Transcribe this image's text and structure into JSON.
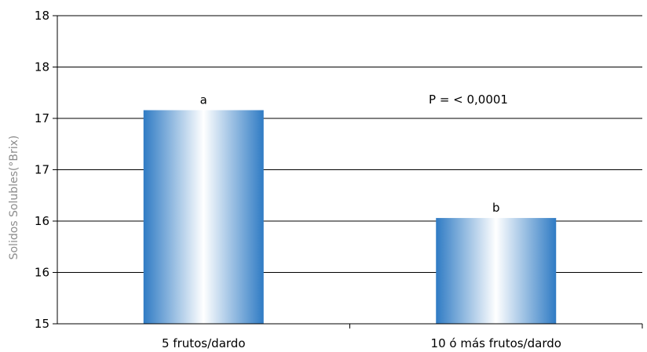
{
  "chart_data": {
    "type": "bar",
    "title": "",
    "xlabel": "",
    "ylabel": "Solidos Solubles(°Brix)",
    "ylim": [
      15,
      18
    ],
    "yticks": [
      15,
      15.5,
      16,
      16.5,
      17,
      17.5,
      18
    ],
    "ytick_labels": [
      "15",
      "16",
      "16",
      "17",
      "17",
      "18",
      "18"
    ],
    "categories": [
      "5 frutos/dardo",
      "10 ó más frutos/dardo"
    ],
    "values": [
      17.08,
      16.03
    ],
    "data_labels": [
      "a",
      "b"
    ],
    "annotation": "P = < 0,0001",
    "grid": true,
    "legend": "none",
    "colors": {
      "bar_edge": "#2f7bc4",
      "bar_center": "#ffffff",
      "gridline": "#000000",
      "ylabel": "#8c8c8c"
    }
  }
}
